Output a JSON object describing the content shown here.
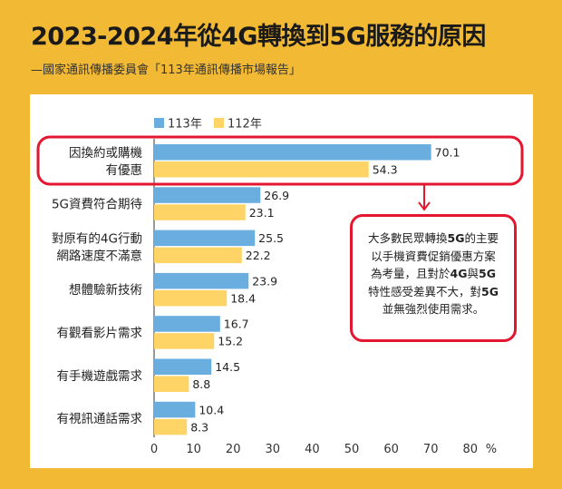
{
  "title": "2023-2024年從4G轉換到5G服務的原因",
  "subtitle": "—國家通訊傳播委員會「113年通訊傳播市場報告」",
  "note": {
    "lines": [
      [
        {
          "t": "大多數民眾轉換",
          "b": false
        },
        {
          "t": "5G",
          "b": true
        },
        {
          "t": "的主要",
          "b": false
        }
      ],
      [
        {
          "t": "以手機資費促銷優惠方案",
          "b": false
        }
      ],
      [
        {
          "t": "為考量，且對於",
          "b": false
        },
        {
          "t": "4G",
          "b": true
        },
        {
          "t": "與",
          "b": false
        },
        {
          "t": "5G",
          "b": true
        }
      ],
      [
        {
          "t": "特性感受差異不大，對",
          "b": false
        },
        {
          "t": "5G",
          "b": true
        }
      ],
      [
        {
          "t": "並無強烈使用需求。",
          "b": false
        }
      ]
    ]
  },
  "chart_data": {
    "type": "bar",
    "orientation": "horizontal",
    "categories": [
      [
        "因換約或購機",
        "有優惠"
      ],
      [
        "5G資費符合期待"
      ],
      [
        "對原有的4G行動",
        "網路速度不滿意"
      ],
      [
        "想體驗新技術"
      ],
      [
        "有觀看影片需求"
      ],
      [
        "有手機遊戲需求"
      ],
      [
        "有視訊通話需求"
      ]
    ],
    "series": [
      {
        "name": "113年",
        "color": "#6AAEE0",
        "values": [
          70.1,
          26.9,
          25.5,
          23.9,
          16.7,
          14.5,
          10.4
        ]
      },
      {
        "name": "112年",
        "color": "#FFD466",
        "values": [
          54.3,
          23.1,
          22.2,
          18.4,
          15.2,
          8.8,
          8.3
        ]
      }
    ],
    "xlim": [
      0,
      80
    ],
    "xticks": [
      0,
      10,
      20,
      30,
      40,
      50,
      60,
      70,
      80
    ],
    "xunit": "%",
    "legend_position": "top-left",
    "highlight_category_index": 0,
    "highlight_color": "#E3172F"
  }
}
